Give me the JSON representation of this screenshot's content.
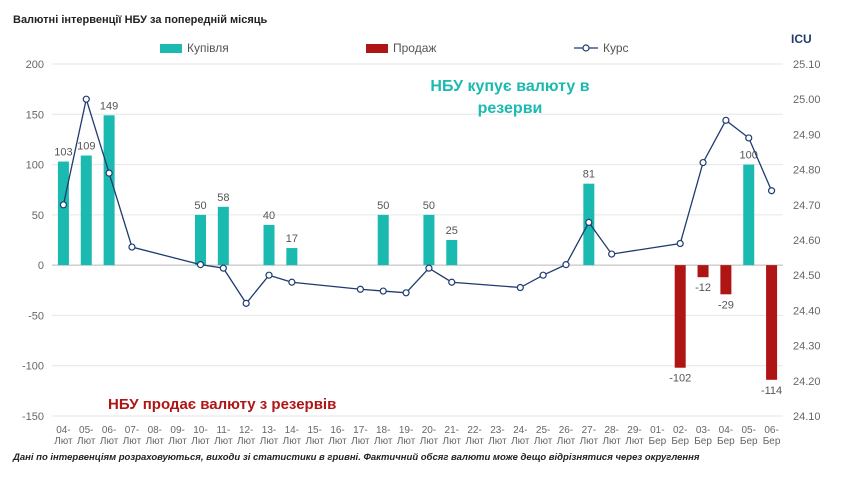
{
  "title": "Валютні інтервенції НБУ  за попередній місяць",
  "logo": "ICU",
  "footnote": "Дані по інтервенціям розраховуються, виходи зі статистики в гривні. Фактичний обсяг валюти може дещо відрізнятися через округлення",
  "annotations": {
    "buy": "НБУ купує валюту в резерви",
    "sell": "НБУ продає валюту з резервів"
  },
  "colors": {
    "buy": "#1bbab0",
    "sell": "#b01515",
    "rate": "#1f3b6f",
    "grid": "#e6e6e6",
    "axis_text": "#666666"
  },
  "chart_data": {
    "type": "bar+line",
    "legend_position": "top",
    "grid": true,
    "categories": [
      [
        "04-",
        "Лют"
      ],
      [
        "05-",
        "Лют"
      ],
      [
        "06-",
        "Лют"
      ],
      [
        "07-",
        "Лют"
      ],
      [
        "08-",
        "Лют"
      ],
      [
        "09-",
        "Лют"
      ],
      [
        "10-",
        "Лют"
      ],
      [
        "11-",
        "Лют"
      ],
      [
        "12-",
        "Лют"
      ],
      [
        "13-",
        "Лют"
      ],
      [
        "14-",
        "Лют"
      ],
      [
        "15-",
        "Лют"
      ],
      [
        "16-",
        "Лют"
      ],
      [
        "17-",
        "Лют"
      ],
      [
        "18-",
        "Лют"
      ],
      [
        "19-",
        "Лют"
      ],
      [
        "20-",
        "Лют"
      ],
      [
        "21-",
        "Лют"
      ],
      [
        "22-",
        "Лют"
      ],
      [
        "23-",
        "Лют"
      ],
      [
        "24-",
        "Лют"
      ],
      [
        "25-",
        "Лют"
      ],
      [
        "26-",
        "Лют"
      ],
      [
        "27-",
        "Лют"
      ],
      [
        "28-",
        "Лют"
      ],
      [
        "29-",
        "Лют"
      ],
      [
        "01-",
        "Бер"
      ],
      [
        "02-",
        "Бер"
      ],
      [
        "03-",
        "Бер"
      ],
      [
        "04-",
        "Бер"
      ],
      [
        "05-",
        "Бер"
      ],
      [
        "06-",
        "Бер"
      ]
    ],
    "series": [
      {
        "name": "Купівля",
        "kind": "bar",
        "color": "#1bbab0",
        "values": [
          103,
          109,
          149,
          null,
          null,
          null,
          50,
          58,
          null,
          40,
          17,
          null,
          null,
          null,
          50,
          null,
          50,
          25,
          null,
          null,
          null,
          null,
          null,
          81,
          null,
          null,
          null,
          null,
          null,
          null,
          100,
          null
        ]
      },
      {
        "name": "Продаж",
        "kind": "bar",
        "color": "#b01515",
        "values": [
          null,
          null,
          null,
          null,
          null,
          null,
          null,
          null,
          null,
          null,
          null,
          null,
          null,
          null,
          null,
          null,
          null,
          null,
          null,
          null,
          null,
          null,
          null,
          null,
          null,
          null,
          null,
          -102,
          -12,
          -29,
          null,
          -114
        ]
      },
      {
        "name": "Курс",
        "kind": "line",
        "axis": "right",
        "color": "#1f3b6f",
        "values": [
          24.7,
          25.0,
          24.79,
          24.58,
          null,
          null,
          24.53,
          24.52,
          24.42,
          24.5,
          24.48,
          null,
          null,
          24.46,
          24.455,
          24.45,
          24.52,
          24.48,
          null,
          null,
          24.465,
          24.5,
          24.53,
          24.65,
          24.56,
          null,
          null,
          24.59,
          24.82,
          24.94,
          24.89,
          24.74
        ]
      }
    ],
    "y_left": {
      "min": -150,
      "max": 200,
      "ticks": [
        200,
        150,
        100,
        50,
        0,
        -50,
        -100,
        -150
      ]
    },
    "y_right": {
      "min": 24.1,
      "max": 25.1,
      "ticks": [
        "25.10",
        "25.00",
        "24.90",
        "24.80",
        "24.70",
        "24.60",
        "24.50",
        "24.40",
        "24.30",
        "24.20",
        "24.10"
      ]
    }
  }
}
